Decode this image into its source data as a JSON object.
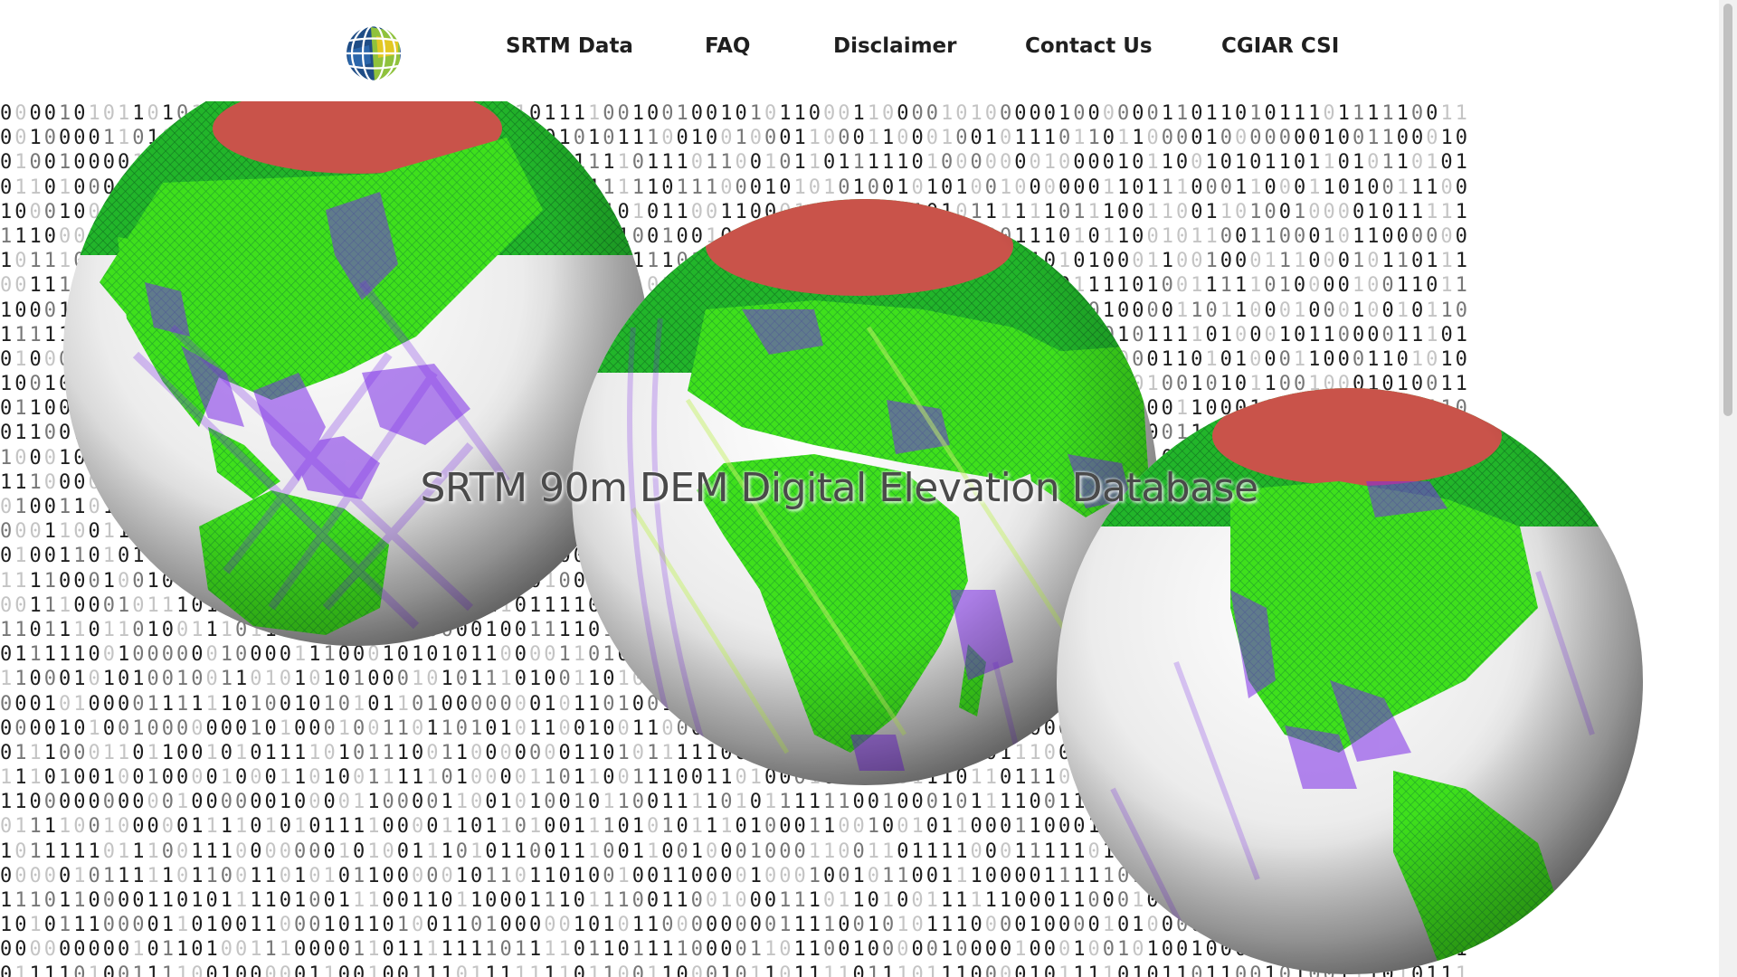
{
  "nav": {
    "logo_icon": "globe-grid-icon",
    "links": [
      {
        "label": "SRTM Data"
      },
      {
        "label": "FAQ"
      },
      {
        "label": "Disclaimer"
      },
      {
        "label": "Contact Us"
      },
      {
        "label": "CGIAR CSI"
      }
    ]
  },
  "hero": {
    "title": "SRTM 90m DEM Digital Elevation Database",
    "background_pattern": "binary-digits",
    "globe_icons": [
      "globe-asia-australia",
      "globe-europe-africa",
      "globe-americas"
    ]
  },
  "colors": {
    "land": "#3fe01c",
    "land_dark": "#1a9c2a",
    "coverage": "#7b2ae8",
    "polar": "#c9534a",
    "ocean": "#e6e6e6"
  }
}
